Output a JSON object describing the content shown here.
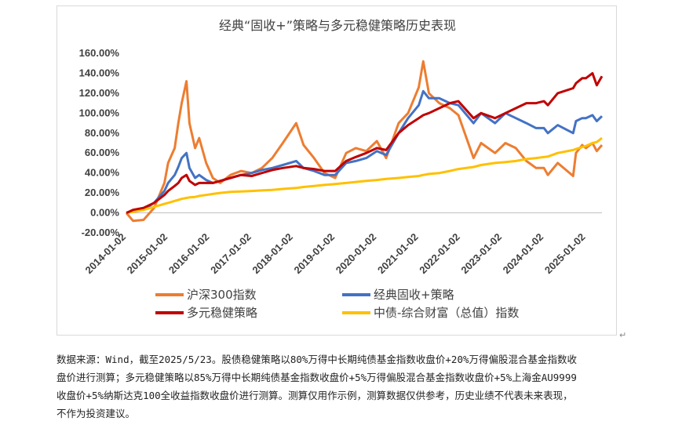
{
  "chart_data": {
    "type": "line",
    "title": "经典“固收+”策略与多元稳健策略历史表现",
    "xlabel": "",
    "ylabel": "",
    "ylim": [
      -20,
      160
    ],
    "y_ticks": [
      "-20.00%",
      "0.00%",
      "20.00%",
      "40.00%",
      "60.00%",
      "80.00%",
      "100.00%",
      "120.00%",
      "140.00%",
      "160.00%"
    ],
    "x_ticks": [
      "2014-01-02",
      "2015-01-02",
      "2016-01-02",
      "2017-01-02",
      "2018-01-02",
      "2019-01-02",
      "2020-01-02",
      "2021-01-02",
      "2022-01-02",
      "2023-01-02",
      "2024-01-02",
      "2025-01-02"
    ],
    "x_range": [
      "2014-01-02",
      "2025-05-23"
    ],
    "grid": false,
    "legend_position": "bottom",
    "x": [
      "2014-01-02",
      "2014-03-01",
      "2014-06-01",
      "2014-09-01",
      "2014-12-01",
      "2015-01-02",
      "2015-03-01",
      "2015-04-01",
      "2015-05-01",
      "2015-06-12",
      "2015-07-08",
      "2015-08-26",
      "2015-10-01",
      "2015-12-01",
      "2016-01-28",
      "2016-04-01",
      "2016-07-01",
      "2016-10-01",
      "2017-01-02",
      "2017-04-01",
      "2017-07-01",
      "2017-10-01",
      "2018-01-26",
      "2018-04-01",
      "2018-07-01",
      "2018-10-01",
      "2019-01-02",
      "2019-04-08",
      "2019-07-01",
      "2019-10-01",
      "2020-01-02",
      "2020-03-23",
      "2020-07-10",
      "2020-10-01",
      "2021-01-02",
      "2021-02-10",
      "2021-04-01",
      "2021-07-01",
      "2021-10-01",
      "2021-12-15",
      "2022-04-26",
      "2022-07-01",
      "2022-10-31",
      "2023-01-30",
      "2023-05-01",
      "2023-08-01",
      "2023-10-25",
      "2024-01-02",
      "2024-02-05",
      "2024-05-01",
      "2024-09-13",
      "2024-10-08",
      "2024-12-01",
      "2025-01-02",
      "2025-03-01",
      "2025-04-08",
      "2025-05-23"
    ],
    "series": [
      {
        "name": "沪深300指数",
        "color": "#ED7D31",
        "values": [
          0,
          -8,
          -7,
          5,
          30,
          50,
          65,
          90,
          110,
          132,
          90,
          65,
          75,
          50,
          35,
          30,
          38,
          42,
          40,
          45,
          55,
          70,
          90,
          68,
          55,
          40,
          35,
          60,
          65,
          62,
          72,
          55,
          90,
          100,
          126,
          152,
          120,
          110,
          105,
          98,
          55,
          70,
          60,
          70,
          65,
          52,
          45,
          45,
          38,
          50,
          37,
          60,
          68,
          65,
          70,
          62,
          68
        ]
      },
      {
        "name": "经典固收+策略",
        "color": "#4472C4",
        "values": [
          0,
          2,
          3,
          10,
          22,
          30,
          38,
          46,
          55,
          60,
          45,
          35,
          38,
          33,
          30,
          32,
          35,
          38,
          40,
          43,
          45,
          48,
          52,
          45,
          42,
          38,
          38,
          50,
          52,
          55,
          62,
          58,
          80,
          95,
          108,
          122,
          115,
          115,
          110,
          108,
          90,
          100,
          90,
          100,
          95,
          90,
          85,
          85,
          80,
          88,
          80,
          92,
          95,
          95,
          98,
          92,
          97
        ]
      },
      {
        "name": "多元稳健策略",
        "color": "#C00000",
        "values": [
          0,
          3,
          5,
          10,
          18,
          22,
          27,
          30,
          35,
          38,
          32,
          28,
          30,
          30,
          30,
          32,
          35,
          38,
          37,
          40,
          43,
          45,
          47,
          45,
          44,
          42,
          42,
          52,
          56,
          60,
          65,
          63,
          80,
          88,
          95,
          98,
          100,
          105,
          110,
          112,
          95,
          100,
          95,
          100,
          105,
          110,
          110,
          112,
          108,
          120,
          125,
          130,
          135,
          135,
          140,
          128,
          137
        ]
      },
      {
        "name": "中债-综合财富（总值）指数",
        "color": "#FFC000",
        "values": [
          0,
          1,
          3,
          6,
          9,
          10,
          12,
          13,
          14,
          15,
          15.5,
          16,
          17,
          18,
          19,
          20,
          21,
          21.5,
          22,
          22.5,
          23,
          24,
          25,
          26,
          27,
          28,
          29,
          30,
          31,
          32,
          33,
          34,
          35,
          36,
          37,
          38,
          39,
          40,
          42,
          44,
          46,
          48,
          50,
          51,
          52,
          54,
          55,
          56,
          56.5,
          60,
          63,
          64,
          66,
          67,
          70,
          71,
          75
        ]
      }
    ]
  },
  "notes": [
    "数据来源：Wind，截至2025/5/23。股债稳健策略以80%万得中长期纯债基金指数收盘价+20%万得偏股混合基金指数收",
    "盘价进行测算；多元稳健策略以85%万得中长期纯债基金指数收盘价+5%万得偏股混合基金指数收盘价+5%上海金AU9999",
    "收盘价+5%纳斯达克100全收益指数收盘价进行测算。测算仅用作示例，测算数据仅供参考，历史业绩不代表未来表现，",
    "不作为投资建议。"
  ]
}
